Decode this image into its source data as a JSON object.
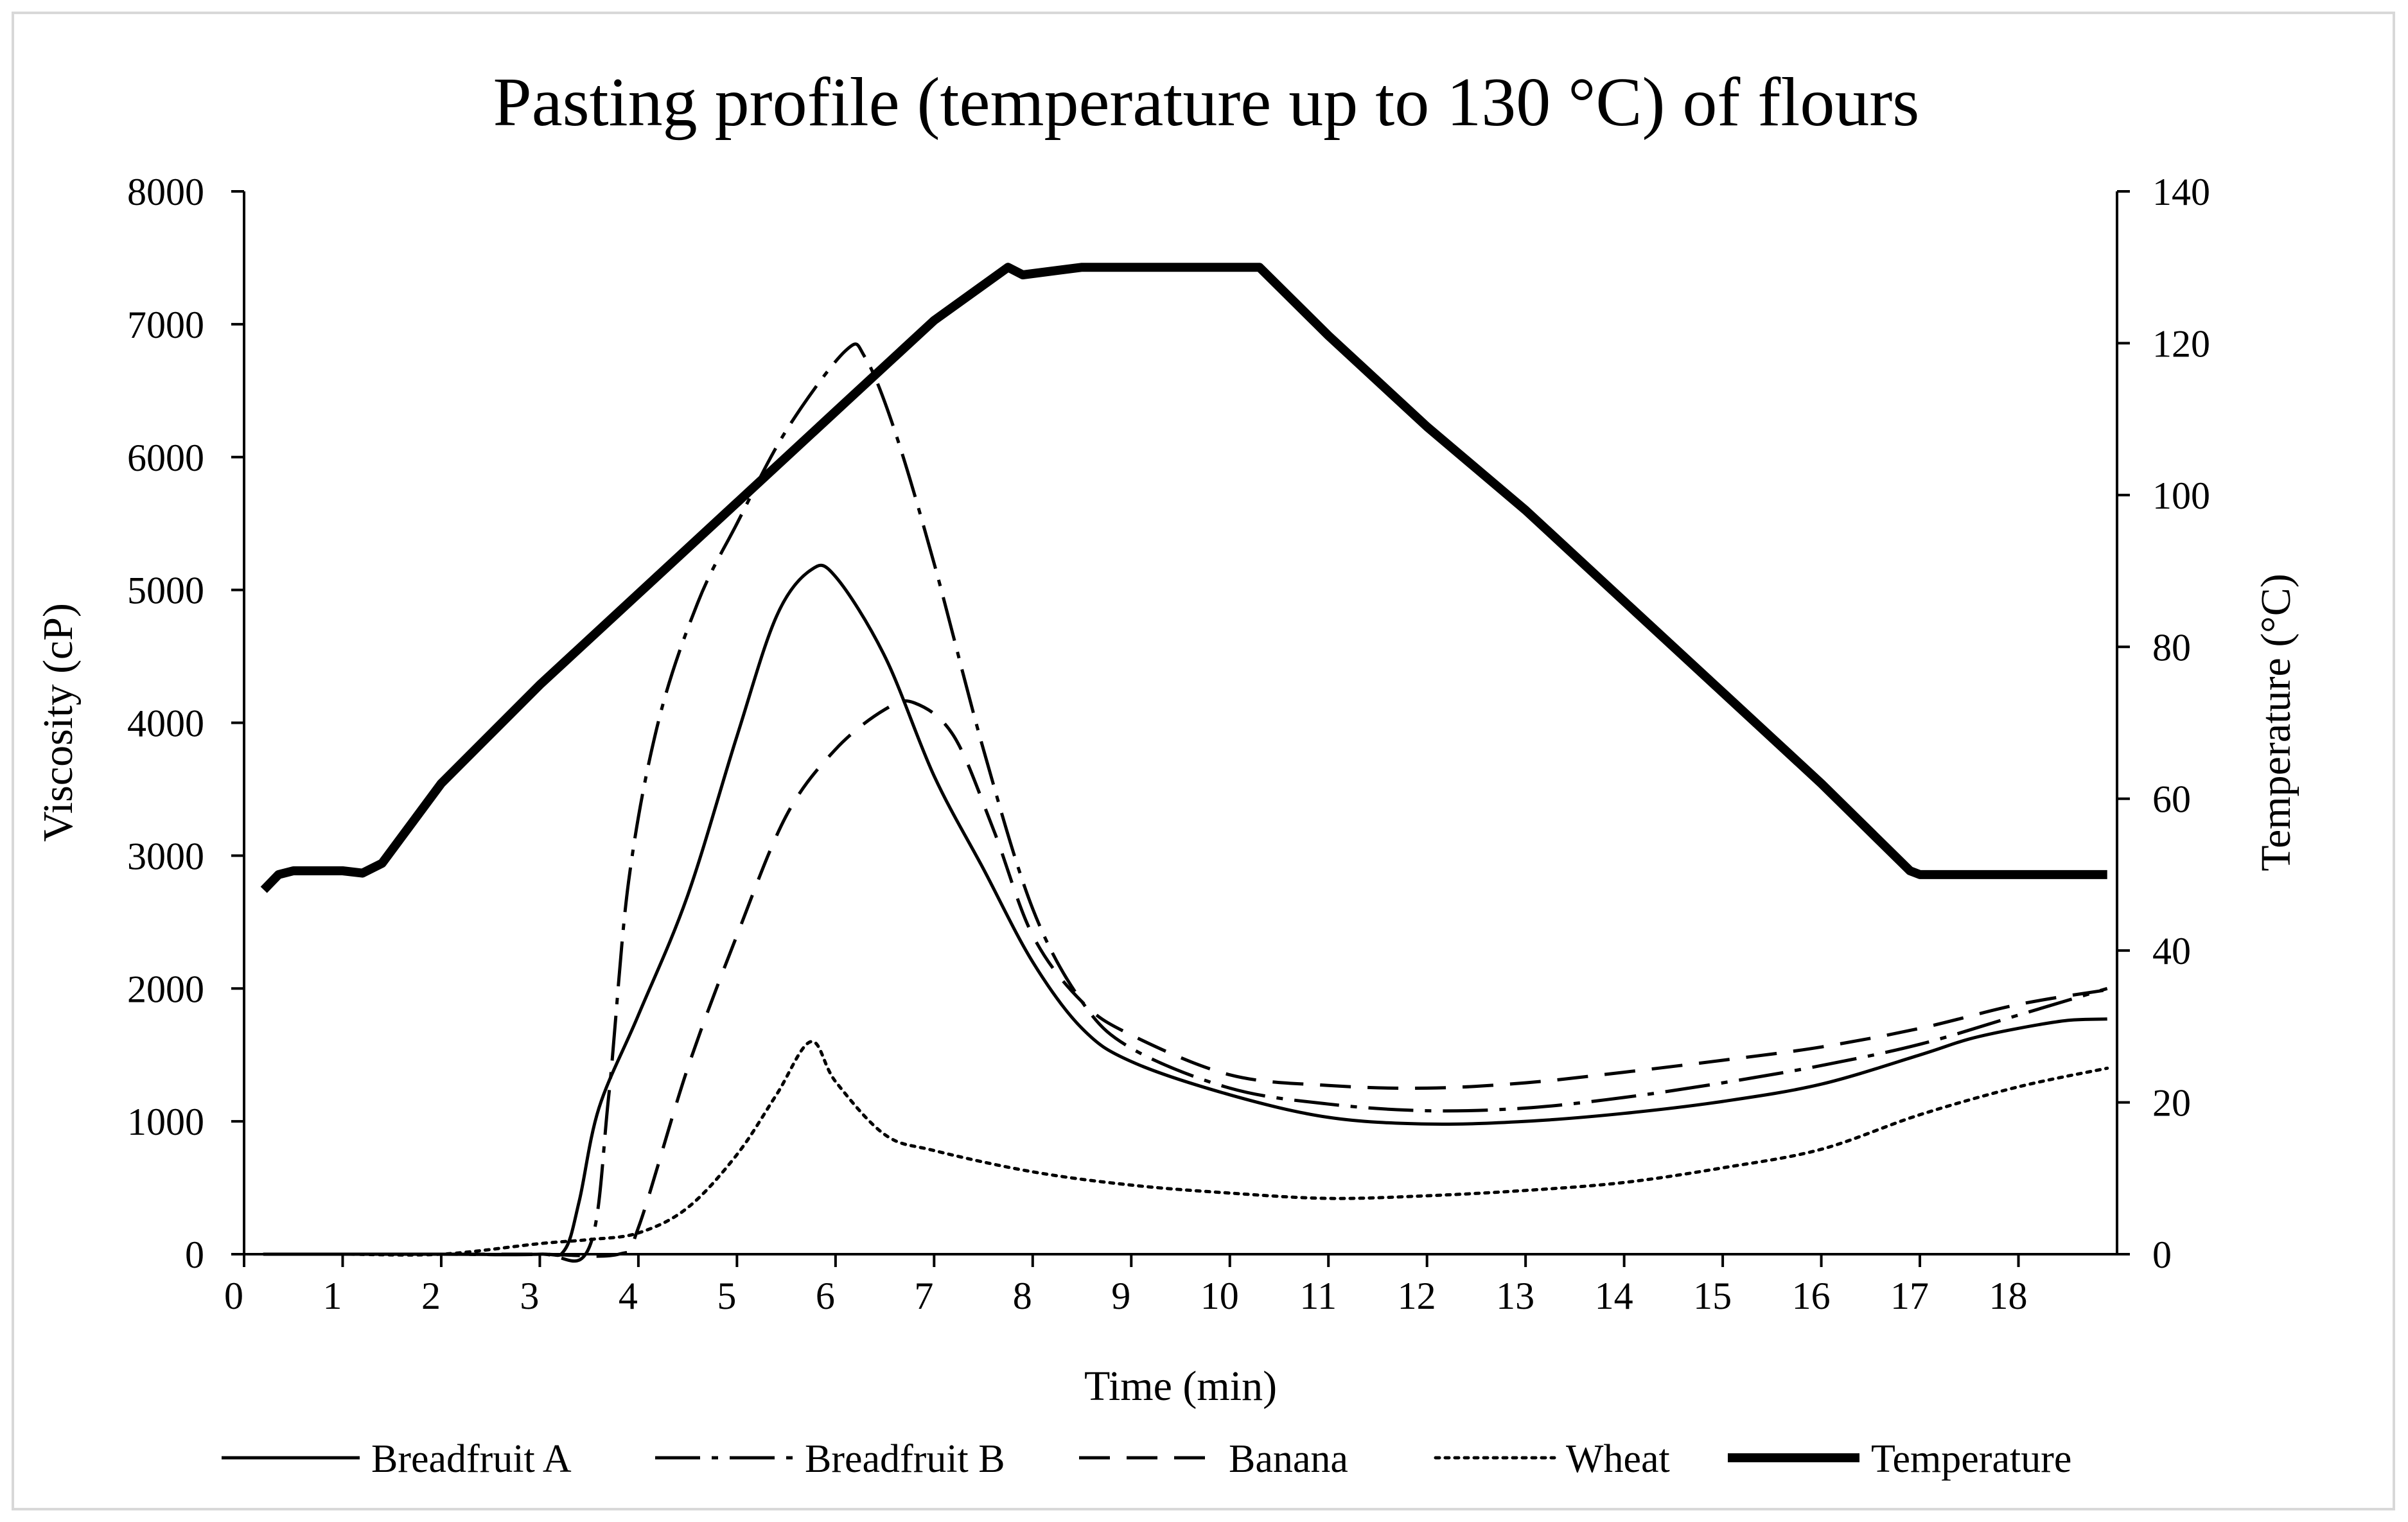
{
  "chart_data": {
    "type": "line",
    "title": "Pasting profile (temperature up to 130 °C) of flours",
    "xlabel": "Time (min)",
    "ylabel": "Viscosity (cP)",
    "y2label": "Temperature (°C)",
    "xlim": [
      0,
      19
    ],
    "ylim": [
      0,
      8000
    ],
    "y2lim": [
      0,
      140
    ],
    "x_ticks": [
      "0",
      "1",
      "2",
      "3",
      "4",
      "5",
      "6",
      "7",
      "8",
      "9",
      "10",
      "11",
      "12",
      "13",
      "14",
      "15",
      "16",
      "17",
      "18"
    ],
    "y_ticks": [
      "0",
      "1000",
      "2000",
      "3000",
      "4000",
      "5000",
      "6000",
      "7000",
      "8000"
    ],
    "y2_ticks": [
      "0",
      "20",
      "40",
      "60",
      "80",
      "100",
      "120",
      "140"
    ],
    "grid": false,
    "legend_position": "bottom",
    "series": [
      {
        "name": "Breadfruit A",
        "axis": "left",
        "style": "solid",
        "x": [
          0.2,
          1,
          2,
          3,
          3.25,
          3.4,
          3.6,
          4,
          4.5,
          5,
          5.4,
          5.75,
          6,
          6.5,
          7,
          7.5,
          8,
          8.5,
          9,
          10,
          11,
          12,
          13,
          14,
          15,
          16,
          17,
          17.5,
          18,
          18.5,
          18.9
        ],
        "values": [
          0,
          0,
          0,
          0,
          30,
          400,
          1100,
          1800,
          2700,
          3900,
          4800,
          5150,
          5100,
          4500,
          3600,
          2900,
          2200,
          1700,
          1450,
          1200,
          1030,
          980,
          1000,
          1060,
          1150,
          1280,
          1500,
          1620,
          1700,
          1760,
          1770
        ]
      },
      {
        "name": "Breadfruit B",
        "axis": "left",
        "style": "dash-dot",
        "x": [
          0.2,
          1,
          2,
          3,
          3.5,
          3.7,
          3.9,
          4.2,
          4.6,
          5,
          5.5,
          6.1,
          6.3,
          6.6,
          7,
          7.5,
          8,
          8.5,
          9,
          10,
          11,
          12,
          13,
          14,
          15,
          16,
          17,
          18,
          18.9
        ],
        "values": [
          0,
          0,
          0,
          0,
          50,
          1200,
          2800,
          4000,
          4900,
          5500,
          6200,
          6800,
          6750,
          6200,
          5200,
          3800,
          2600,
          1900,
          1550,
          1250,
          1130,
          1080,
          1100,
          1180,
          1290,
          1420,
          1580,
          1800,
          2000
        ]
      },
      {
        "name": "Banana",
        "axis": "left",
        "style": "dashed",
        "x": [
          0.2,
          1,
          2,
          3,
          3.8,
          4,
          4.5,
          5,
          5.5,
          6,
          6.5,
          6.8,
          7.2,
          7.6,
          8,
          8.5,
          9,
          10,
          11,
          12,
          13,
          14,
          15,
          16,
          17,
          18,
          18.9
        ],
        "values": [
          0,
          0,
          0,
          0,
          0,
          200,
          1400,
          2400,
          3300,
          3800,
          4100,
          4150,
          3900,
          3200,
          2400,
          1900,
          1650,
          1350,
          1270,
          1250,
          1290,
          1370,
          1460,
          1560,
          1700,
          1880,
          1990
        ]
      },
      {
        "name": "Wheat",
        "axis": "left",
        "style": "dotted",
        "x": [
          0.2,
          1,
          2,
          3,
          3.5,
          4,
          4.5,
          5,
          5.4,
          5.75,
          6,
          6.5,
          7,
          8,
          9,
          10,
          11,
          12,
          13,
          14,
          15,
          16,
          17,
          18,
          18.9
        ],
        "values": [
          0,
          0,
          0,
          80,
          110,
          160,
          350,
          750,
          1200,
          1600,
          1300,
          900,
          780,
          620,
          520,
          460,
          420,
          440,
          480,
          540,
          650,
          790,
          1050,
          1260,
          1400
        ]
      },
      {
        "name": "Temperature",
        "axis": "right",
        "style": "thick",
        "x": [
          0.2,
          0.35,
          0.5,
          1,
          1.2,
          1.4,
          2,
          3,
          4,
          5,
          6,
          7,
          7.75,
          7.9,
          8.5,
          9,
          10,
          10.3,
          11,
          12,
          13,
          14,
          15,
          16,
          16.9,
          17,
          18,
          18.9
        ],
        "values": [
          48,
          50,
          50.5,
          50.5,
          50.2,
          51.5,
          62,
          75,
          87,
          99,
          111,
          123,
          130,
          129,
          130,
          130,
          130,
          130,
          121,
          109,
          98,
          86,
          74,
          62,
          50.5,
          50,
          50,
          50
        ]
      }
    ]
  }
}
